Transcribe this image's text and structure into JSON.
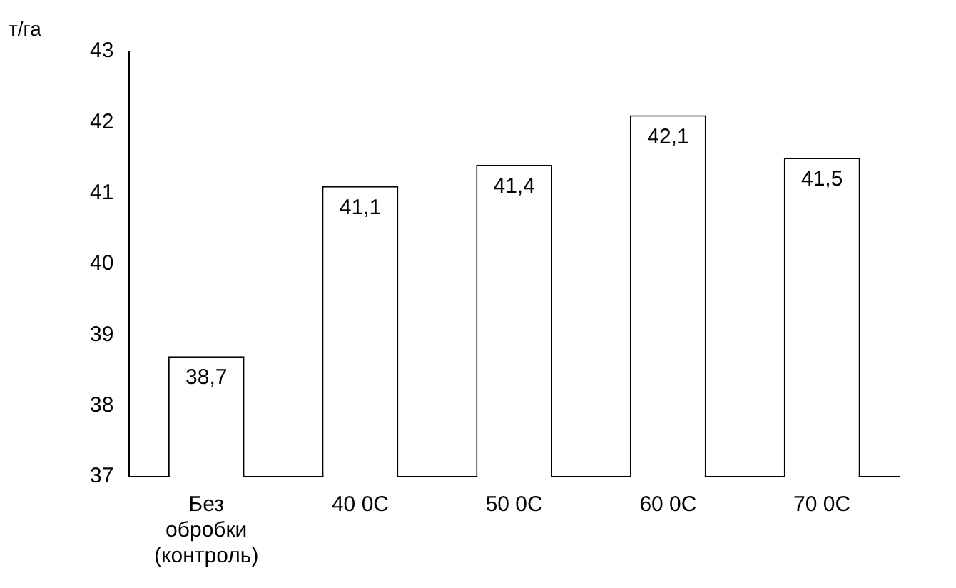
{
  "chart_data": {
    "type": "bar",
    "ylabel": "т/га",
    "categories": [
      "Без обробки (контроль)",
      "40 0С",
      "50 0С",
      "60 0С",
      "70 0С"
    ],
    "values": [
      38.7,
      41.1,
      41.4,
      42.1,
      41.5
    ],
    "color": "#ffffff",
    "value_labels": [
      "38,7",
      "41,1",
      "41,4",
      "42,1",
      "41,5"
    ],
    "ylim": [
      37,
      43
    ],
    "yticks": [
      37,
      38,
      39,
      40,
      41,
      42,
      43
    ],
    "grid": false,
    "legend": false
  }
}
